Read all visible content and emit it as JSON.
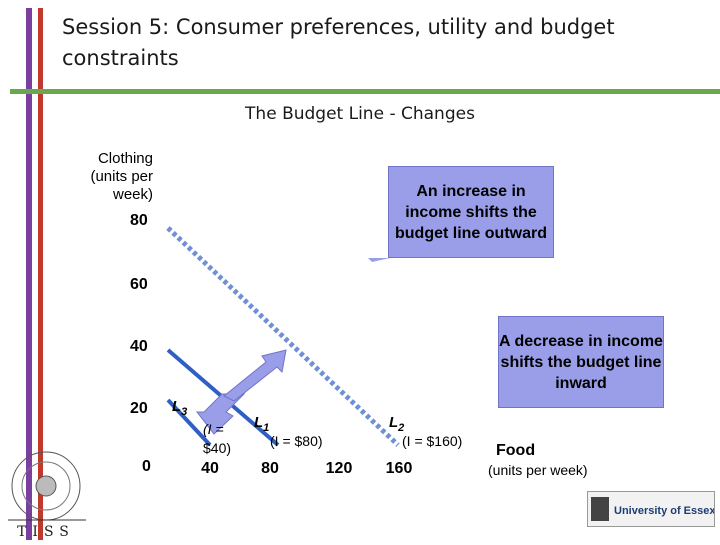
{
  "slide": {
    "title": "Session 5: Consumer preferences, utility and budget constraints",
    "subtitle": "The Budget Line - Changes"
  },
  "axes": {
    "y_label": "Clothing (units per week)",
    "y_ticks": [
      "80",
      "60",
      "40",
      "20",
      "0"
    ],
    "x_ticks": [
      "40",
      "80",
      "120",
      "160"
    ],
    "x_label": "Food",
    "x_units": "(units per week)"
  },
  "lines": {
    "l3": {
      "name": "L",
      "sub": "3",
      "income": "(I = $40)",
      "income_line1": "(I =",
      "income_line2": "$40)"
    },
    "l1": {
      "name": "L",
      "sub": "1",
      "income": "(I = $80)"
    },
    "l2": {
      "name": "L",
      "sub": "2",
      "income": "(I = $160)"
    }
  },
  "callouts": {
    "increase": "An increase in income shifts the budget line outward",
    "decrease": "A decrease in income shifts the budget line inward"
  },
  "colors": {
    "accent_purple": "#7b3fa0",
    "accent_red": "#c0392b",
    "rule_green": "#6aa84f",
    "line_blue": "#2f5fc4",
    "dotted_blue": "#6f8fd8",
    "arrow_fill": "#9a9ee8"
  },
  "logos": {
    "left": "TISS",
    "right": "University of Essex"
  }
}
